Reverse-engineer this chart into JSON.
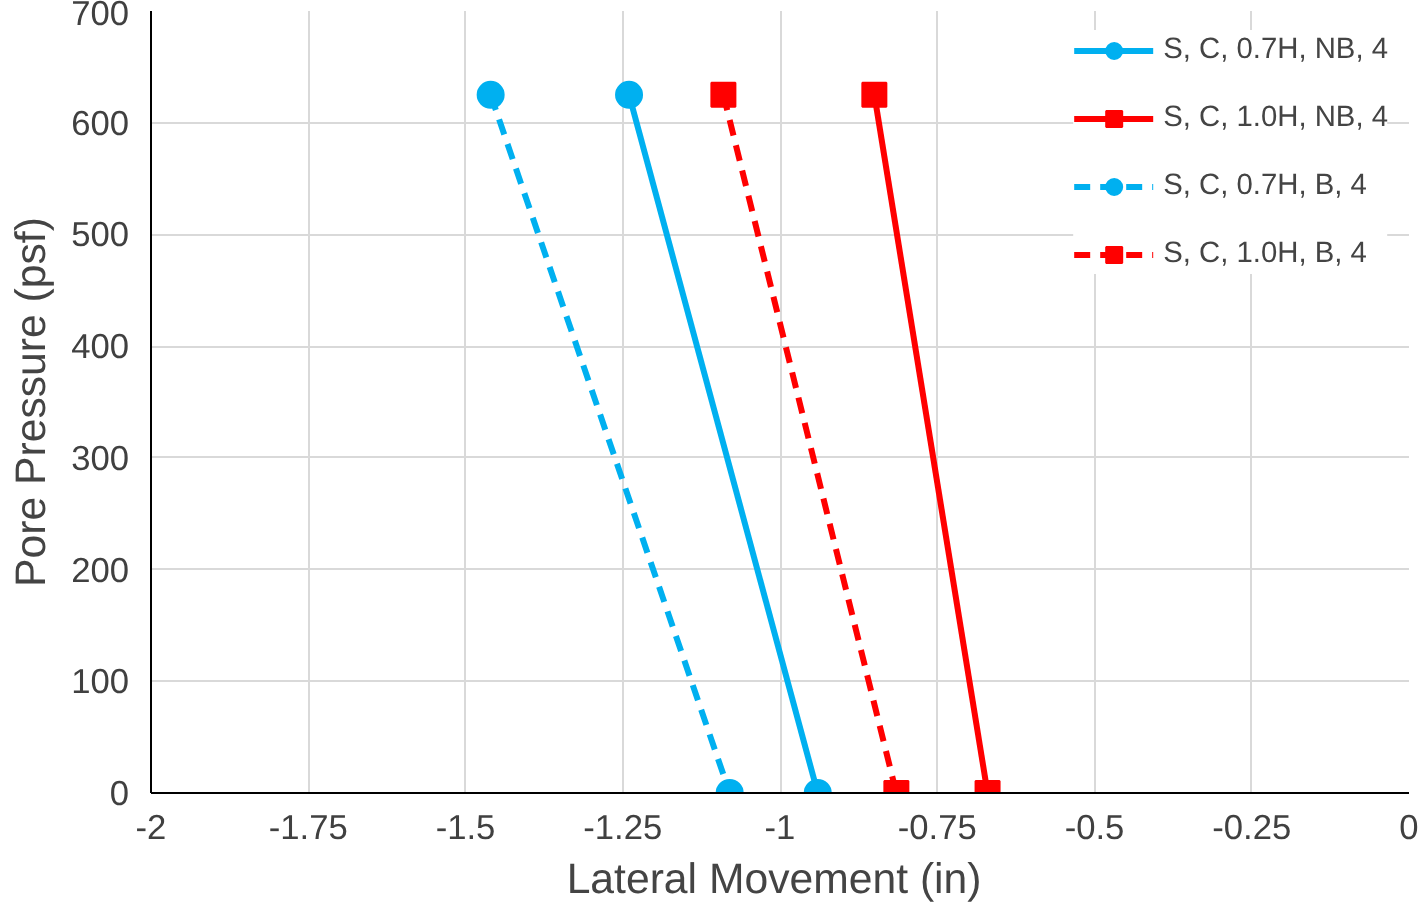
{
  "chart_data": {
    "type": "line",
    "xlabel": "Lateral Movement  (in)",
    "ylabel": "Pore Pressure (psf)",
    "xlim": [
      -2,
      0
    ],
    "xticks": [
      -2,
      -1.75,
      -1.5,
      -1.25,
      -1,
      -0.75,
      -0.5,
      -0.25,
      0
    ],
    "ylim": [
      0,
      700
    ],
    "yticks": [
      0,
      100,
      200,
      300,
      400,
      500,
      600,
      700
    ],
    "grid": true,
    "legend": "top right",
    "series": [
      {
        "name": "S, C, 0.7H, NB, 4",
        "color": "#00b0f0",
        "marker": "circle",
        "line_style": "solid",
        "x": [
          -1.24,
          -0.94
        ],
        "values": [
          625,
          0
        ]
      },
      {
        "name": "S, C, 1.0H, NB, 4",
        "color": "#ff0000",
        "marker": "square",
        "line_style": "solid",
        "x": [
          -0.85,
          -0.67
        ],
        "values": [
          625,
          0
        ]
      },
      {
        "name": "S, C, 0.7H, B, 4",
        "color": "#00b0f0",
        "marker": "circle",
        "line_style": "dashed",
        "x": [
          -1.46,
          -1.08
        ],
        "values": [
          625,
          0
        ]
      },
      {
        "name": "S, C, 1.0H, B, 4",
        "color": "#ff0000",
        "marker": "square",
        "line_style": "dashed",
        "x": [
          -1.09,
          -0.815
        ],
        "values": [
          625,
          0
        ]
      }
    ]
  }
}
